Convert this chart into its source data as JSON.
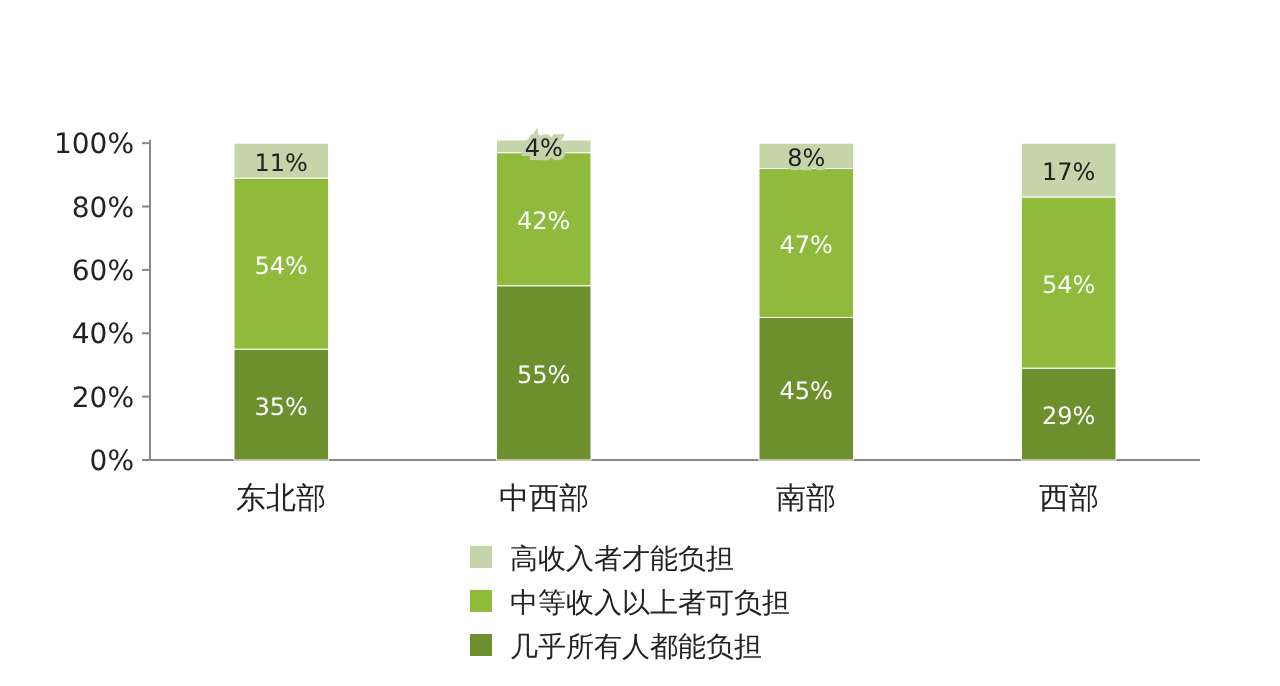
{
  "chart_data": {
    "type": "bar",
    "stacked": true,
    "legend": "bottom",
    "grid": false,
    "categories": [
      "东北部",
      "中西部",
      "南部",
      "西部"
    ],
    "ylim": [
      0,
      101
    ],
    "yticks": [
      {
        "value": 0,
        "label": "0%"
      },
      {
        "value": 20,
        "label": "20%"
      },
      {
        "value": 40,
        "label": "40%"
      },
      {
        "value": 60,
        "label": "60%"
      },
      {
        "value": 80,
        "label": "80%"
      },
      {
        "value": 100,
        "label": "100%"
      }
    ],
    "series": [
      {
        "name": "几乎所有人都能负担",
        "color": "#6e8f2e",
        "values": [
          35,
          55,
          45,
          29
        ],
        "value_labels": [
          "35%",
          "55%",
          "45%",
          "29%"
        ]
      },
      {
        "name": "中等收入以上者可负担",
        "color": "#8fba3c",
        "values": [
          54,
          42,
          47,
          54
        ],
        "value_labels": [
          "54%",
          "42%",
          "47%",
          "54%"
        ]
      },
      {
        "name": "高收入者才能负担",
        "color": "#c6d4aa",
        "values": [
          11,
          4,
          8,
          17
        ],
        "value_labels": [
          "11%",
          "4%",
          "8%",
          "17%"
        ]
      }
    ]
  }
}
